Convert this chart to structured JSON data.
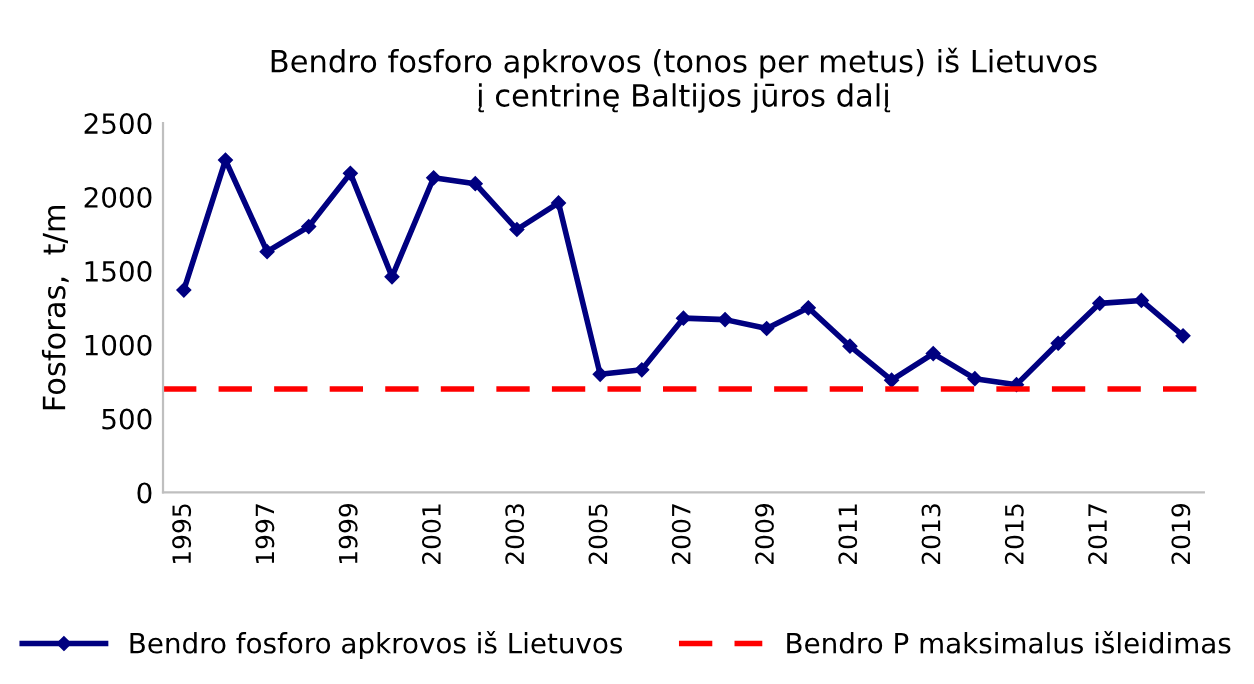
{
  "chart_data": {
    "type": "line",
    "title": "Bendro fosforo apkrovos (tonos per metus) iš Lietuvos\nį centrinę Baltijos jūros dalį",
    "ylabel": "Fosforas,  t/m",
    "categories": [
      "1995",
      null,
      "1997",
      null,
      "1999",
      null,
      "2001",
      null,
      "2003",
      null,
      "2005",
      null,
      "2007",
      null,
      "2009",
      null,
      "2011",
      null,
      "2013",
      null,
      "2015",
      null,
      "2017",
      null,
      "2019"
    ],
    "series": [
      {
        "name": "Bendro fosforo apkrovos iš Lietuvos",
        "color": "#000080",
        "values": [
          1370,
          2250,
          1630,
          1800,
          2160,
          1460,
          2130,
          2090,
          1780,
          1960,
          800,
          830,
          1180,
          1170,
          1110,
          1250,
          990,
          760,
          940,
          770,
          730,
          1010,
          1280,
          1300,
          1060
        ]
      }
    ],
    "ref_lines": [
      {
        "axis": "y",
        "value": 700,
        "label": "Bendro P maksimalus išleidimas",
        "color": "#ff0000",
        "line_style": "dashed"
      }
    ],
    "ylim": [
      0,
      2500
    ],
    "yticks": [
      0,
      500,
      1000,
      1500,
      2000,
      2500
    ],
    "grid": false,
    "legend": "bottom",
    "marker": "diamond",
    "line_style": "solid"
  }
}
